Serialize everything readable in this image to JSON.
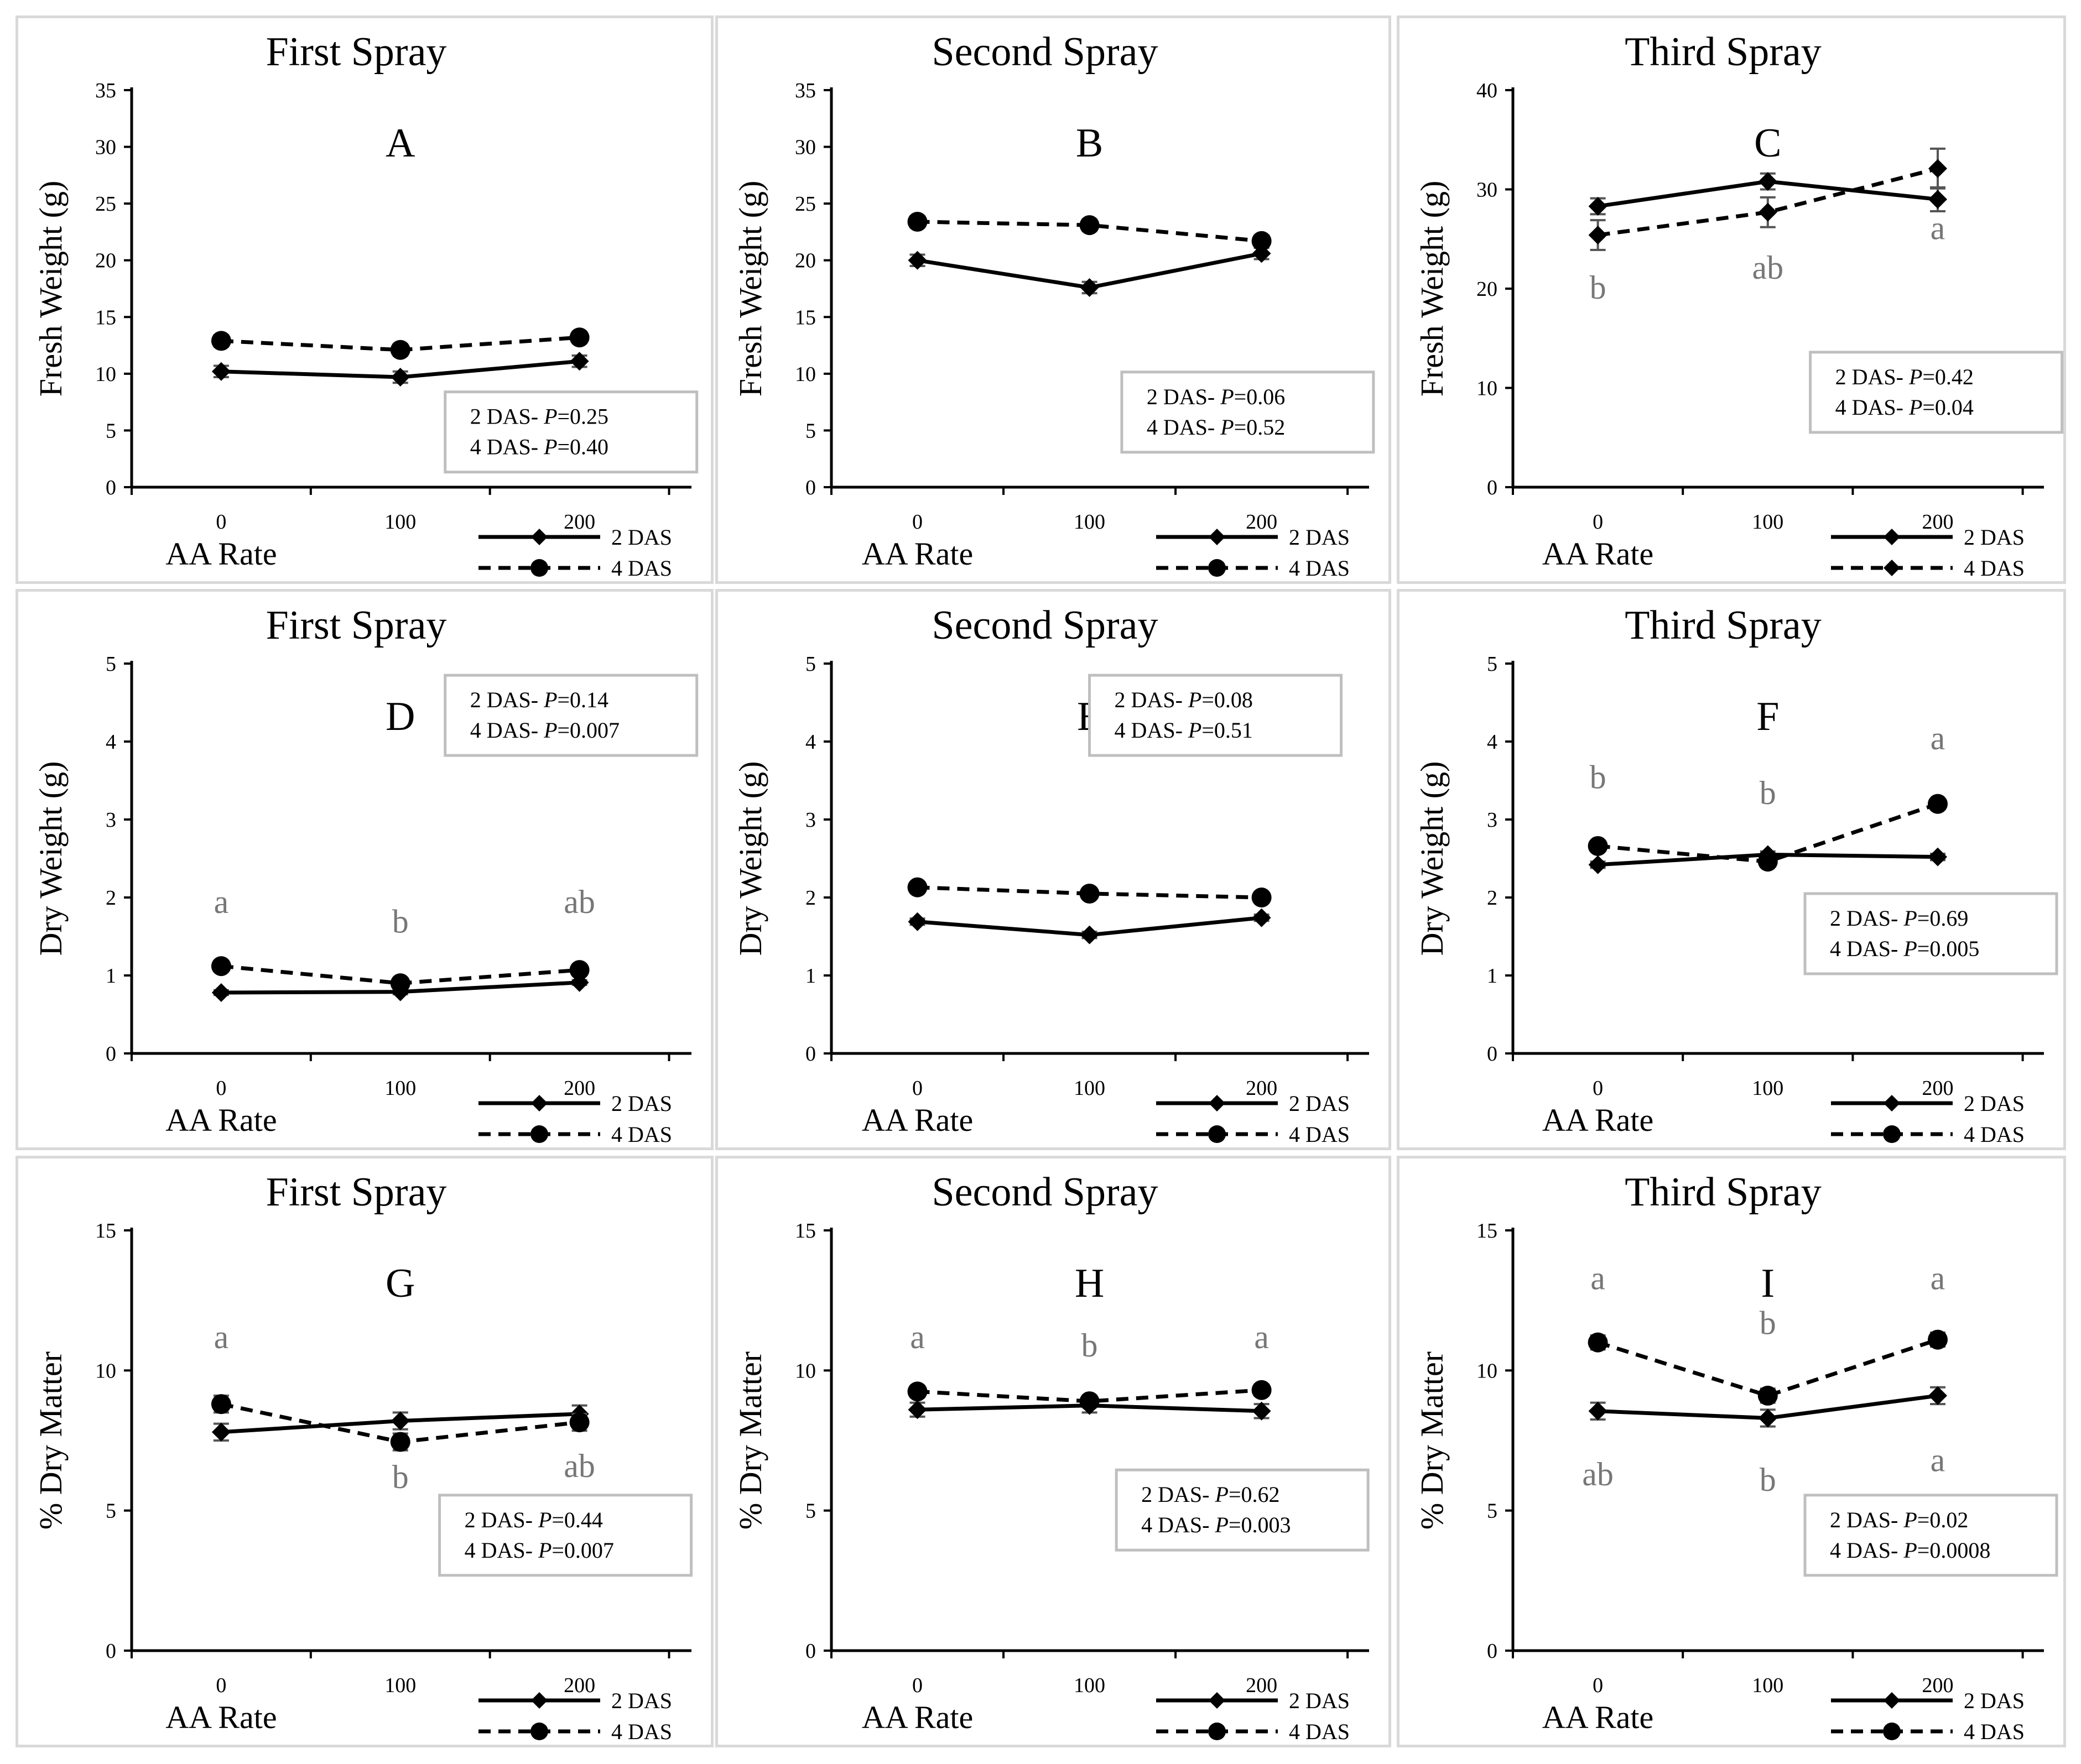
{
  "chart_data": [
    {
      "type": "line",
      "letter": "A",
      "title": "First Spray",
      "xlabel": "AA Rate",
      "ylabel": "Fresh Weight (g)",
      "categories": [
        "0",
        "100",
        "200"
      ],
      "ylim": [
        0,
        35
      ],
      "yticks": [
        "0",
        "5",
        "10",
        "15",
        "20",
        "25",
        "30",
        "35"
      ],
      "series": [
        {
          "name": "2 DAS",
          "values": [
            10.2,
            9.7,
            11.1
          ],
          "err": [
            0.5,
            0.5,
            0.5
          ],
          "style": "solid",
          "marker": "diamond"
        },
        {
          "name": "4 DAS",
          "values": [
            12.9,
            12.1,
            13.2
          ],
          "err": [
            0.5,
            0.5,
            0.5
          ],
          "style": "dashed",
          "marker": "circle"
        }
      ],
      "stats": [
        {
          "label": "2 DAS- ",
          "p": "P",
          "val": "=0.25"
        },
        {
          "label": "4 DAS- ",
          "p": "P",
          "val": "=0.40"
        }
      ],
      "letters": []
    },
    {
      "type": "line",
      "letter": "B",
      "title": "Second Spray",
      "xlabel": "AA Rate",
      "ylabel": "Fresh Weight (g)",
      "categories": [
        "0",
        "100",
        "200"
      ],
      "ylim": [
        0,
        35
      ],
      "yticks": [
        "0",
        "5",
        "10",
        "15",
        "20",
        "25",
        "30",
        "35"
      ],
      "series": [
        {
          "name": "2 DAS",
          "values": [
            20.0,
            17.6,
            20.6
          ],
          "err": [
            0.5,
            0.5,
            0.5
          ],
          "style": "solid",
          "marker": "diamond"
        },
        {
          "name": "4 DAS",
          "values": [
            23.4,
            23.1,
            21.7
          ],
          "err": [
            0.5,
            0.5,
            0.5
          ],
          "style": "dashed",
          "marker": "circle"
        }
      ],
      "stats": [
        {
          "label": "2 DAS- ",
          "p": "P",
          "val": "=0.06"
        },
        {
          "label": "4 DAS- ",
          "p": "P",
          "val": "=0.52"
        }
      ],
      "letters": []
    },
    {
      "type": "line",
      "letter": "C",
      "title": "Third Spray",
      "xlabel": "AA Rate",
      "ylabel": "Fresh Weight (g)",
      "categories": [
        "0",
        "100",
        "200"
      ],
      "ylim": [
        0,
        40
      ],
      "yticks": [
        "0",
        "10",
        "20",
        "30",
        "40"
      ],
      "series": [
        {
          "name": "2 DAS",
          "values": [
            28.3,
            30.8,
            29.0
          ],
          "err": [
            0.8,
            0.8,
            1.2
          ],
          "style": "solid",
          "marker": "diamond"
        },
        {
          "name": "4 DAS",
          "values": [
            25.4,
            27.7,
            32.1
          ],
          "err": [
            1.5,
            1.5,
            2.0
          ],
          "style": "dashed",
          "marker": "diamond"
        }
      ],
      "stats": [
        {
          "label": "2 DAS- ",
          "p": "P",
          "val": "=0.42"
        },
        {
          "label": "4 DAS- ",
          "p": "P",
          "val": "=0.04"
        }
      ],
      "letters": [
        {
          "x": 0,
          "y": 19.0,
          "text": "b"
        },
        {
          "x": 1,
          "y": 21.0,
          "text": "ab"
        },
        {
          "x": 2,
          "y": 25.0,
          "text": "a"
        }
      ]
    },
    {
      "type": "line",
      "letter": "D",
      "title": "First Spray",
      "xlabel": "AA Rate",
      "ylabel": "Dry Weight (g)",
      "categories": [
        "0",
        "100",
        "200"
      ],
      "ylim": [
        0,
        5
      ],
      "yticks": [
        "0",
        "1",
        "2",
        "3",
        "4",
        "5"
      ],
      "series": [
        {
          "name": "2 DAS",
          "values": [
            0.78,
            0.79,
            0.91
          ],
          "err": [
            0.03,
            0.03,
            0.03
          ],
          "style": "solid",
          "marker": "diamond"
        },
        {
          "name": "4 DAS",
          "values": [
            1.12,
            0.9,
            1.07
          ],
          "err": [
            0.04,
            0.04,
            0.04
          ],
          "style": "dashed",
          "marker": "circle"
        }
      ],
      "stats": [
        {
          "label": "2 DAS- ",
          "p": "P",
          "val": "=0.14"
        },
        {
          "label": "4 DAS- ",
          "p": "P",
          "val": "=0.007"
        }
      ],
      "letters": [
        {
          "x": 0,
          "y": 1.8,
          "text": "a"
        },
        {
          "x": 1,
          "y": 1.55,
          "text": "b"
        },
        {
          "x": 2,
          "y": 1.8,
          "text": "ab"
        }
      ]
    },
    {
      "type": "line",
      "letter": "E",
      "title": "Second Spray",
      "xlabel": "AA Rate",
      "ylabel": "Dry Weight (g)",
      "categories": [
        "0",
        "100",
        "200"
      ],
      "ylim": [
        0,
        5
      ],
      "yticks": [
        "0",
        "1",
        "2",
        "3",
        "4",
        "5"
      ],
      "series": [
        {
          "name": "2 DAS",
          "values": [
            1.69,
            1.52,
            1.74
          ],
          "err": [
            0.04,
            0.04,
            0.04
          ],
          "style": "solid",
          "marker": "diamond"
        },
        {
          "name": "4 DAS",
          "values": [
            2.13,
            2.05,
            2.0
          ],
          "err": [
            0.04,
            0.04,
            0.04
          ],
          "style": "dashed",
          "marker": "circle"
        }
      ],
      "stats": [
        {
          "label": "2 DAS- ",
          "p": "P",
          "val": "=0.08"
        },
        {
          "label": "4 DAS- ",
          "p": "P",
          "val": "=0.51"
        }
      ],
      "letters": []
    },
    {
      "type": "line",
      "letter": "F",
      "title": "Third Spray",
      "xlabel": "AA Rate",
      "ylabel": "Dry Weight (g)",
      "categories": [
        "0",
        "100",
        "200"
      ],
      "ylim": [
        0,
        5
      ],
      "yticks": [
        "0",
        "1",
        "2",
        "3",
        "4",
        "5"
      ],
      "series": [
        {
          "name": "2 DAS",
          "values": [
            2.42,
            2.55,
            2.52
          ],
          "err": [
            0.04,
            0.04,
            0.04
          ],
          "style": "solid",
          "marker": "diamond"
        },
        {
          "name": "4 DAS",
          "values": [
            2.66,
            2.46,
            3.2
          ],
          "err": [
            0.05,
            0.05,
            0.05
          ],
          "style": "dashed",
          "marker": "circle"
        }
      ],
      "stats": [
        {
          "label": "2 DAS- ",
          "p": "P",
          "val": "=0.69"
        },
        {
          "label": "4 DAS- ",
          "p": "P",
          "val": "=0.005"
        }
      ],
      "letters": [
        {
          "x": 0,
          "y": 3.4,
          "text": "b"
        },
        {
          "x": 1,
          "y": 3.2,
          "text": "b"
        },
        {
          "x": 2,
          "y": 3.9,
          "text": "a"
        }
      ]
    },
    {
      "type": "line",
      "letter": "G",
      "title": "First Spray",
      "xlabel": "AA Rate",
      "ylabel": "% Dry Matter",
      "categories": [
        "0",
        "100",
        "200"
      ],
      "ylim": [
        0,
        15
      ],
      "yticks": [
        "0",
        "5",
        "10",
        "15"
      ],
      "series": [
        {
          "name": "2 DAS",
          "values": [
            7.8,
            8.2,
            8.45
          ],
          "err": [
            0.3,
            0.3,
            0.3
          ],
          "style": "solid",
          "marker": "diamond"
        },
        {
          "name": "4 DAS",
          "values": [
            8.8,
            7.45,
            8.15
          ],
          "err": [
            0.3,
            0.3,
            0.3
          ],
          "style": "dashed",
          "marker": "circle"
        }
      ],
      "stats": [
        {
          "label": "2 DAS- ",
          "p": "P",
          "val": "=0.44"
        },
        {
          "label": "4 DAS- ",
          "p": "P",
          "val": "=0.007"
        }
      ],
      "letters": [
        {
          "x": 0,
          "y": 10.8,
          "text": "a"
        },
        {
          "x": 1,
          "y": 5.8,
          "text": "b"
        },
        {
          "x": 2,
          "y": 6.2,
          "text": "ab"
        }
      ]
    },
    {
      "type": "line",
      "letter": "H",
      "title": "Second Spray",
      "xlabel": "AA Rate",
      "ylabel": "% Dry Matter",
      "categories": [
        "0",
        "100",
        "200"
      ],
      "ylim": [
        0,
        15
      ],
      "yticks": [
        "0",
        "5",
        "10",
        "15"
      ],
      "series": [
        {
          "name": "2 DAS",
          "values": [
            8.6,
            8.75,
            8.55
          ],
          "err": [
            0.25,
            0.25,
            0.25
          ],
          "style": "solid",
          "marker": "diamond"
        },
        {
          "name": "4 DAS",
          "values": [
            9.25,
            8.9,
            9.3
          ],
          "err": [
            0.2,
            0.2,
            0.2
          ],
          "style": "dashed",
          "marker": "circle"
        }
      ],
      "stats": [
        {
          "label": "2 DAS- ",
          "p": "P",
          "val": "=0.62"
        },
        {
          "label": "4 DAS- ",
          "p": "P",
          "val": "=0.003"
        }
      ],
      "letters": [
        {
          "x": 0,
          "y": 10.8,
          "text": "a"
        },
        {
          "x": 1,
          "y": 10.5,
          "text": "b"
        },
        {
          "x": 2,
          "y": 10.8,
          "text": "a"
        }
      ]
    },
    {
      "type": "line",
      "letter": "I",
      "title": "Third Spray",
      "xlabel": "AA Rate",
      "ylabel": "% Dry Matter",
      "categories": [
        "0",
        "100",
        "200"
      ],
      "ylim": [
        0,
        15
      ],
      "yticks": [
        "0",
        "5",
        "10",
        "15"
      ],
      "series": [
        {
          "name": "2 DAS",
          "values": [
            8.55,
            8.3,
            9.1
          ],
          "err": [
            0.3,
            0.3,
            0.3
          ],
          "style": "solid",
          "marker": "diamond"
        },
        {
          "name": "4 DAS",
          "values": [
            11.0,
            9.1,
            11.1
          ],
          "err": [
            0.25,
            0.25,
            0.25
          ],
          "style": "dashed",
          "marker": "circle"
        }
      ],
      "stats": [
        {
          "label": "2 DAS- ",
          "p": "P",
          "val": "=0.02"
        },
        {
          "label": "4 DAS- ",
          "p": "P",
          "val": "=0.0008"
        }
      ],
      "letters": [
        {
          "x": 0,
          "y": 12.9,
          "text": "a"
        },
        {
          "x": 1,
          "y": 11.3,
          "text": "b"
        },
        {
          "x": 2,
          "y": 12.9,
          "text": "a"
        },
        {
          "x": 0,
          "y": 5.9,
          "text": "ab"
        },
        {
          "x": 1,
          "y": 5.7,
          "text": "b"
        },
        {
          "x": 2,
          "y": 6.4,
          "text": "a"
        }
      ]
    }
  ]
}
